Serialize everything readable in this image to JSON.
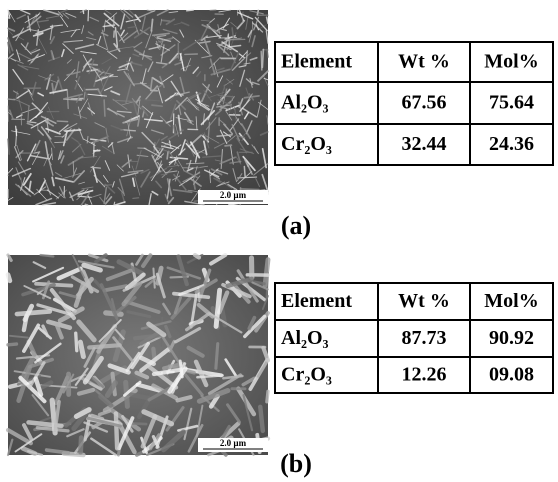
{
  "panels": [
    {
      "label": "(a)",
      "scale_bar": "2.0 µm",
      "table": {
        "header": [
          "Element",
          "Wt %",
          "Mol%"
        ],
        "rows": [
          [
            "Al₂O₃",
            "67.56",
            "75.64"
          ],
          [
            "Cr₂O₃",
            "32.44",
            "24.36"
          ]
        ]
      }
    },
    {
      "label": "(b)",
      "scale_bar": "2.0 µm",
      "table": {
        "header": [
          "Element",
          "Wt %",
          "Mol%"
        ],
        "rows": [
          [
            "Al₂O₃",
            "87.73",
            "90.92"
          ],
          [
            "Cr₂O₃",
            "12.26",
            "09.08"
          ]
        ]
      }
    }
  ]
}
